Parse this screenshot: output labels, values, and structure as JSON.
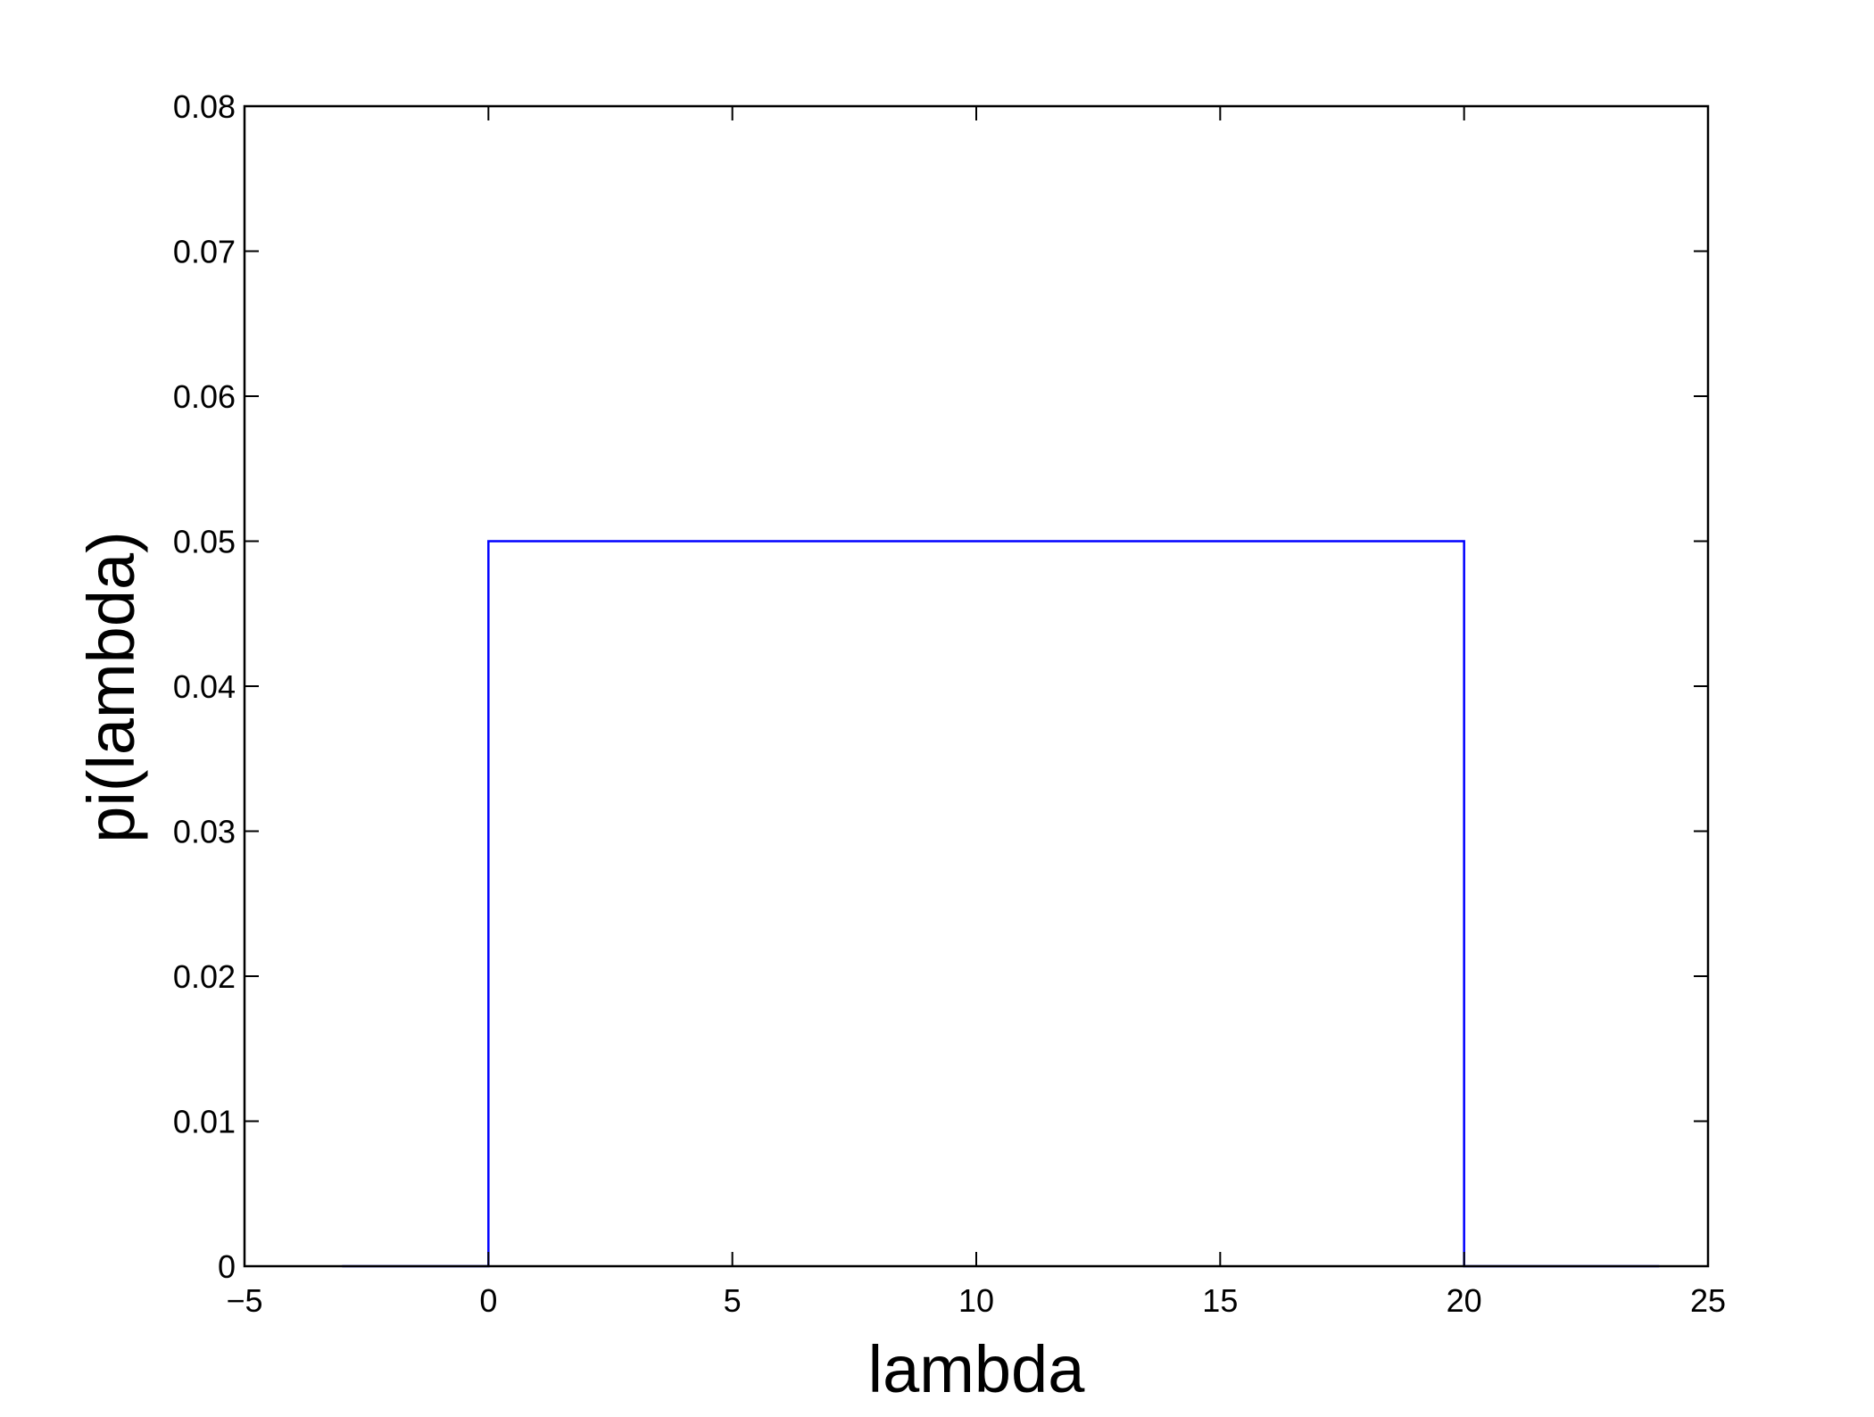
{
  "chart_data": {
    "type": "line",
    "title": "",
    "xlabel": "lambda",
    "ylabel": "pi(lambda)",
    "xlim": [
      -5,
      25
    ],
    "ylim": [
      0,
      0.08
    ],
    "xticks": [
      -5,
      0,
      5,
      10,
      15,
      20,
      25
    ],
    "xtick_labels": [
      "−5",
      "0",
      "5",
      "10",
      "15",
      "20",
      "25"
    ],
    "yticks": [
      0,
      0.01,
      0.02,
      0.03,
      0.04,
      0.05,
      0.06,
      0.07,
      0.08
    ],
    "ytick_labels": [
      "0",
      "0.01",
      "0.02",
      "0.03",
      "0.04",
      "0.05",
      "0.06",
      "0.07",
      "0.08"
    ],
    "grid": false,
    "legend": "none",
    "series": [
      {
        "color": "#0000ff",
        "x": [
          -3,
          0,
          0,
          20,
          20,
          24
        ],
        "y": [
          0,
          0,
          0.05,
          0.05,
          0,
          0
        ]
      }
    ]
  }
}
